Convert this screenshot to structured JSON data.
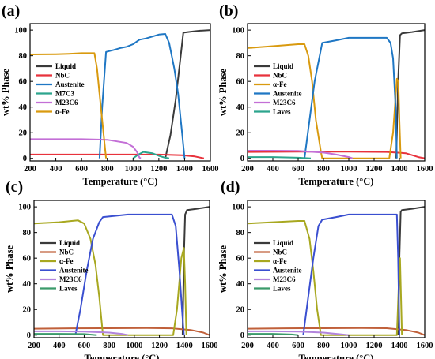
{
  "figure": {
    "width": 550,
    "height": 455
  },
  "chart_data": [
    {
      "panel": "(a)",
      "type": "line",
      "xlabel": "Temperature (°C)",
      "ylabel": "wt% Phase",
      "xlim": [
        200,
        1600
      ],
      "ylim": [
        -2,
        105
      ],
      "xticks": [
        200,
        400,
        600,
        800,
        1000,
        1200,
        1400,
        1600
      ],
      "yticks": [
        0,
        20,
        40,
        60,
        80,
        100
      ],
      "series": [
        {
          "name": "Liquid",
          "color": "#3a3a3a",
          "points": [
            [
              1250,
              0
            ],
            [
              1290,
              18
            ],
            [
              1330,
              45
            ],
            [
              1370,
              80
            ],
            [
              1390,
              98
            ],
            [
              1450,
              98.8
            ],
            [
              1520,
              99.5
            ],
            [
              1600,
              100
            ]
          ]
        },
        {
          "name": "NbC",
          "color": "#e8323c",
          "points": [
            [
              200,
              3
            ],
            [
              400,
              3
            ],
            [
              800,
              3
            ],
            [
              1000,
              3
            ],
            [
              1200,
              3
            ],
            [
              1380,
              2.5
            ],
            [
              1480,
              1.5
            ],
            [
              1550,
              0
            ]
          ]
        },
        {
          "name": "Austenite",
          "color": "#1f77c4",
          "points": [
            [
              740,
              0
            ],
            [
              760,
              40
            ],
            [
              790,
              83
            ],
            [
              850,
              84.5
            ],
            [
              900,
              86
            ],
            [
              950,
              87
            ],
            [
              1000,
              89
            ],
            [
              1050,
              92.5
            ],
            [
              1100,
              93.5
            ],
            [
              1150,
              95
            ],
            [
              1200,
              96.5
            ],
            [
              1250,
              97
            ],
            [
              1280,
              90
            ],
            [
              1320,
              70
            ],
            [
              1350,
              50
            ],
            [
              1380,
              20
            ],
            [
              1400,
              0
            ]
          ]
        },
        {
          "name": "M7C3",
          "color": "#2ca58d",
          "points": [
            [
              1000,
              0
            ],
            [
              1040,
              3
            ],
            [
              1080,
              5
            ],
            [
              1150,
              4
            ],
            [
              1200,
              2
            ],
            [
              1250,
              0.5
            ],
            [
              1280,
              0
            ]
          ]
        },
        {
          "name": "M23C6",
          "color": "#c36fd6",
          "points": [
            [
              200,
              15
            ],
            [
              400,
              15
            ],
            [
              600,
              15
            ],
            [
              800,
              14.5
            ],
            [
              950,
              12
            ],
            [
              1000,
              9
            ],
            [
              1030,
              5
            ],
            [
              1050,
              0.5
            ],
            [
              1060,
              0
            ]
          ]
        },
        {
          "name": "α-Fe",
          "color": "#d99a0f",
          "points": [
            [
              200,
              81
            ],
            [
              400,
              81.2
            ],
            [
              500,
              81.5
            ],
            [
              600,
              82
            ],
            [
              700,
              82
            ],
            [
              720,
              70
            ],
            [
              740,
              50
            ],
            [
              770,
              20
            ],
            [
              790,
              0
            ]
          ]
        }
      ]
    },
    {
      "panel": "(b)",
      "type": "line",
      "xlabel": "Temperature (°C)",
      "ylabel": "wt% Phase",
      "xlim": [
        200,
        1600
      ],
      "ylim": [
        -2,
        105
      ],
      "xticks": [
        200,
        400,
        600,
        800,
        1000,
        1200,
        1400,
        1600
      ],
      "yticks": [
        0,
        20,
        40,
        60,
        80,
        100
      ],
      "series": [
        {
          "name": "Liquid",
          "color": "#3a3a3a",
          "points": [
            [
              1375,
              0
            ],
            [
              1390,
              60
            ],
            [
              1405,
              96
            ],
            [
              1420,
              97.5
            ],
            [
              1500,
              98.5
            ],
            [
              1600,
              100
            ]
          ]
        },
        {
          "name": "NbC",
          "color": "#e8323c",
          "points": [
            [
              200,
              5
            ],
            [
              600,
              5.2
            ],
            [
              1000,
              5.2
            ],
            [
              1300,
              5
            ],
            [
              1450,
              4
            ],
            [
              1550,
              1
            ],
            [
              1600,
              0
            ]
          ]
        },
        {
          "name": "α-Fe",
          "color": "#d99a0f",
          "points": [
            [
              200,
              86
            ],
            [
              400,
              87.5
            ],
            [
              600,
              89
            ],
            [
              650,
              89
            ],
            [
              680,
              80
            ],
            [
              710,
              60
            ],
            [
              740,
              30
            ],
            [
              780,
              5
            ],
            [
              790,
              0
            ],
            [
              1320,
              0
            ],
            [
              1350,
              20
            ],
            [
              1380,
              62
            ],
            [
              1392,
              60
            ],
            [
              1400,
              30
            ],
            [
              1410,
              0
            ]
          ]
        },
        {
          "name": "Austenite",
          "color": "#1f77c4",
          "points": [
            [
              650,
              0
            ],
            [
              690,
              30
            ],
            [
              730,
              60
            ],
            [
              770,
              80
            ],
            [
              790,
              90
            ],
            [
              900,
              92
            ],
            [
              1000,
              94
            ],
            [
              1100,
              94
            ],
            [
              1200,
              94
            ],
            [
              1300,
              94
            ],
            [
              1330,
              90
            ],
            [
              1350,
              78
            ],
            [
              1370,
              40
            ],
            [
              1380,
              0
            ]
          ]
        },
        {
          "name": "M23C6",
          "color": "#c36fd6",
          "points": [
            [
              200,
              6
            ],
            [
              400,
              6
            ],
            [
              600,
              5.8
            ],
            [
              800,
              4.5
            ],
            [
              900,
              3
            ],
            [
              1000,
              1
            ],
            [
              1030,
              0
            ]
          ]
        },
        {
          "name": "Laves",
          "color": "#2ca58d",
          "points": [
            [
              200,
              1
            ],
            [
              400,
              1
            ],
            [
              600,
              0.5
            ],
            [
              700,
              0
            ]
          ]
        }
      ]
    },
    {
      "panel": "(c)",
      "type": "line",
      "xlabel": "Temperature (°C)",
      "ylabel": "wt% Phase",
      "xlim": [
        200,
        1600
      ],
      "ylim": [
        -2,
        105
      ],
      "xticks": [
        200,
        400,
        600,
        800,
        1000,
        1200,
        1400,
        1600
      ],
      "yticks": [
        0,
        20,
        40,
        60,
        80,
        100
      ],
      "series": [
        {
          "name": "Liquid",
          "color": "#3a3a3a",
          "points": [
            [
              1385,
              0
            ],
            [
              1395,
              60
            ],
            [
              1405,
              94
            ],
            [
              1420,
              97.5
            ],
            [
              1500,
              98.5
            ],
            [
              1600,
              100
            ]
          ]
        },
        {
          "name": "NbC",
          "color": "#c0603a",
          "points": [
            [
              200,
              5
            ],
            [
              500,
              5.3
            ],
            [
              800,
              5.4
            ],
            [
              1100,
              5.5
            ],
            [
              1300,
              5.3
            ],
            [
              1450,
              4
            ],
            [
              1550,
              2
            ],
            [
              1600,
              0
            ]
          ]
        },
        {
          "name": "α-Fe",
          "color": "#a8a820",
          "points": [
            [
              200,
              87
            ],
            [
              400,
              88
            ],
            [
              500,
              89
            ],
            [
              550,
              89.5
            ],
            [
              600,
              87
            ],
            [
              650,
              75
            ],
            [
              690,
              55
            ],
            [
              720,
              30
            ],
            [
              740,
              10
            ],
            [
              750,
              0
            ],
            [
              1310,
              0
            ],
            [
              1340,
              20
            ],
            [
              1375,
              60
            ],
            [
              1395,
              68
            ],
            [
              1405,
              40
            ],
            [
              1415,
              0
            ]
          ]
        },
        {
          "name": "Austenite",
          "color": "#3a4fd0",
          "points": [
            [
              530,
              0
            ],
            [
              570,
              20
            ],
            [
              620,
              50
            ],
            [
              670,
              75
            ],
            [
              720,
              88
            ],
            [
              750,
              92
            ],
            [
              850,
              93
            ],
            [
              950,
              94
            ],
            [
              1100,
              94
            ],
            [
              1300,
              94
            ],
            [
              1330,
              85
            ],
            [
              1360,
              50
            ],
            [
              1380,
              20
            ],
            [
              1395,
              0
            ]
          ]
        },
        {
          "name": "M23C6",
          "color": "#b284dc",
          "points": [
            [
              200,
              3
            ],
            [
              400,
              3
            ],
            [
              600,
              2.8
            ],
            [
              800,
              2
            ],
            [
              900,
              1
            ],
            [
              950,
              0
            ]
          ]
        },
        {
          "name": "Laves",
          "color": "#3a9a6a",
          "points": [
            [
              200,
              1
            ],
            [
              400,
              1
            ],
            [
              600,
              0.8
            ],
            [
              700,
              0
            ]
          ]
        }
      ]
    },
    {
      "panel": "(d)",
      "type": "line",
      "xlabel": "Temperature (°C)",
      "ylabel": "wt% Phase",
      "xlim": [
        200,
        1600
      ],
      "ylim": [
        -2,
        105
      ],
      "xticks": [
        200,
        400,
        600,
        800,
        1000,
        1200,
        1400,
        1600
      ],
      "yticks": [
        0,
        20,
        40,
        60,
        80,
        100
      ],
      "series": [
        {
          "name": "Liquid",
          "color": "#3a3a3a",
          "points": [
            [
              1390,
              0
            ],
            [
              1400,
              60
            ],
            [
              1410,
              96
            ],
            [
              1420,
              97.5
            ],
            [
              1500,
              98.5
            ],
            [
              1600,
              100
            ]
          ]
        },
        {
          "name": "NbC",
          "color": "#c0603a",
          "points": [
            [
              200,
              5
            ],
            [
              500,
              5.3
            ],
            [
              800,
              5.4
            ],
            [
              1100,
              5.5
            ],
            [
              1300,
              5.4
            ],
            [
              1450,
              4
            ],
            [
              1550,
              2
            ],
            [
              1600,
              0
            ]
          ]
        },
        {
          "name": "α-Fe",
          "color": "#a8a820",
          "points": [
            [
              200,
              87
            ],
            [
              400,
              88
            ],
            [
              600,
              89
            ],
            [
              650,
              89
            ],
            [
              690,
              75
            ],
            [
              720,
              50
            ],
            [
              750,
              20
            ],
            [
              780,
              0
            ],
            [
              1380,
              0
            ],
            [
              1395,
              40
            ],
            [
              1405,
              60
            ],
            [
              1415,
              20
            ],
            [
              1420,
              0
            ]
          ]
        },
        {
          "name": "Austenite",
          "color": "#3a4fd0",
          "points": [
            [
              640,
              0
            ],
            [
              680,
              30
            ],
            [
              720,
              60
            ],
            [
              760,
              85
            ],
            [
              790,
              90
            ],
            [
              900,
              92
            ],
            [
              1000,
              94
            ],
            [
              1100,
              94
            ],
            [
              1300,
              94
            ],
            [
              1380,
              94
            ],
            [
              1390,
              60
            ],
            [
              1400,
              0
            ]
          ]
        },
        {
          "name": "M23C6",
          "color": "#b284dc",
          "points": [
            [
              200,
              3
            ],
            [
              400,
              3
            ],
            [
              600,
              2.8
            ],
            [
              800,
              2
            ],
            [
              950,
              0.5
            ],
            [
              1000,
              0
            ]
          ]
        },
        {
          "name": "Laves",
          "color": "#3a9a6a",
          "points": [
            [
              200,
              1
            ],
            [
              400,
              1
            ],
            [
              550,
              0.5
            ],
            [
              600,
              0
            ]
          ]
        }
      ]
    }
  ]
}
